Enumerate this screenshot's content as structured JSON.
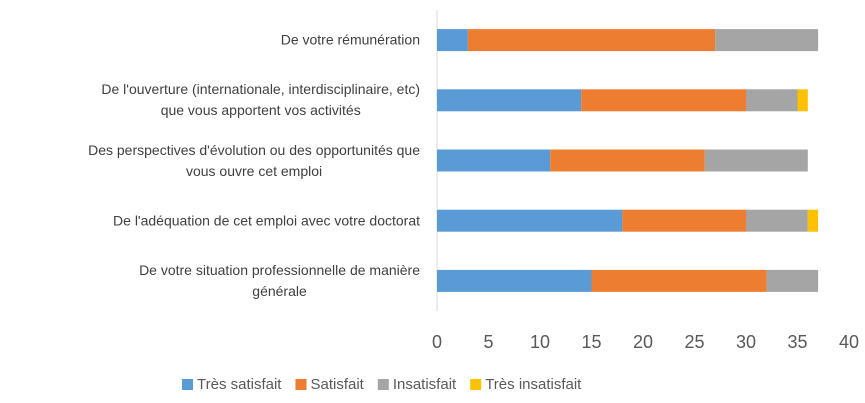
{
  "chart_data": {
    "type": "stacked-barh",
    "categories": [
      "De votre rémunération",
      "De l'ouverture (internationale, interdisciplinaire, etc)\nque vous apportent vos activités",
      "Des perspectives d'évolution ou des opportunités que\nvous ouvre cet emploi",
      "De l'adéquation de cet emploi avec votre doctorat",
      "De votre situation professionnelle de manière\ngénérale"
    ],
    "series": [
      {
        "name": "Très satisfait",
        "color": "#5b9bd5",
        "values": [
          3,
          14,
          11,
          18,
          15
        ]
      },
      {
        "name": "Satisfait",
        "color": "#ed7d31",
        "values": [
          24,
          16,
          15,
          12,
          17
        ]
      },
      {
        "name": "Insatisfait",
        "color": "#a5a5a5",
        "values": [
          10,
          5,
          10,
          6,
          5
        ]
      },
      {
        "name": "Très insatisfait",
        "color": "#ffc000",
        "values": [
          0,
          1,
          0,
          1,
          0
        ]
      }
    ],
    "xlim": [
      0,
      40
    ],
    "xticks": [
      0,
      5,
      10,
      15,
      20,
      25,
      30,
      35,
      40
    ],
    "legend": "bottom"
  }
}
